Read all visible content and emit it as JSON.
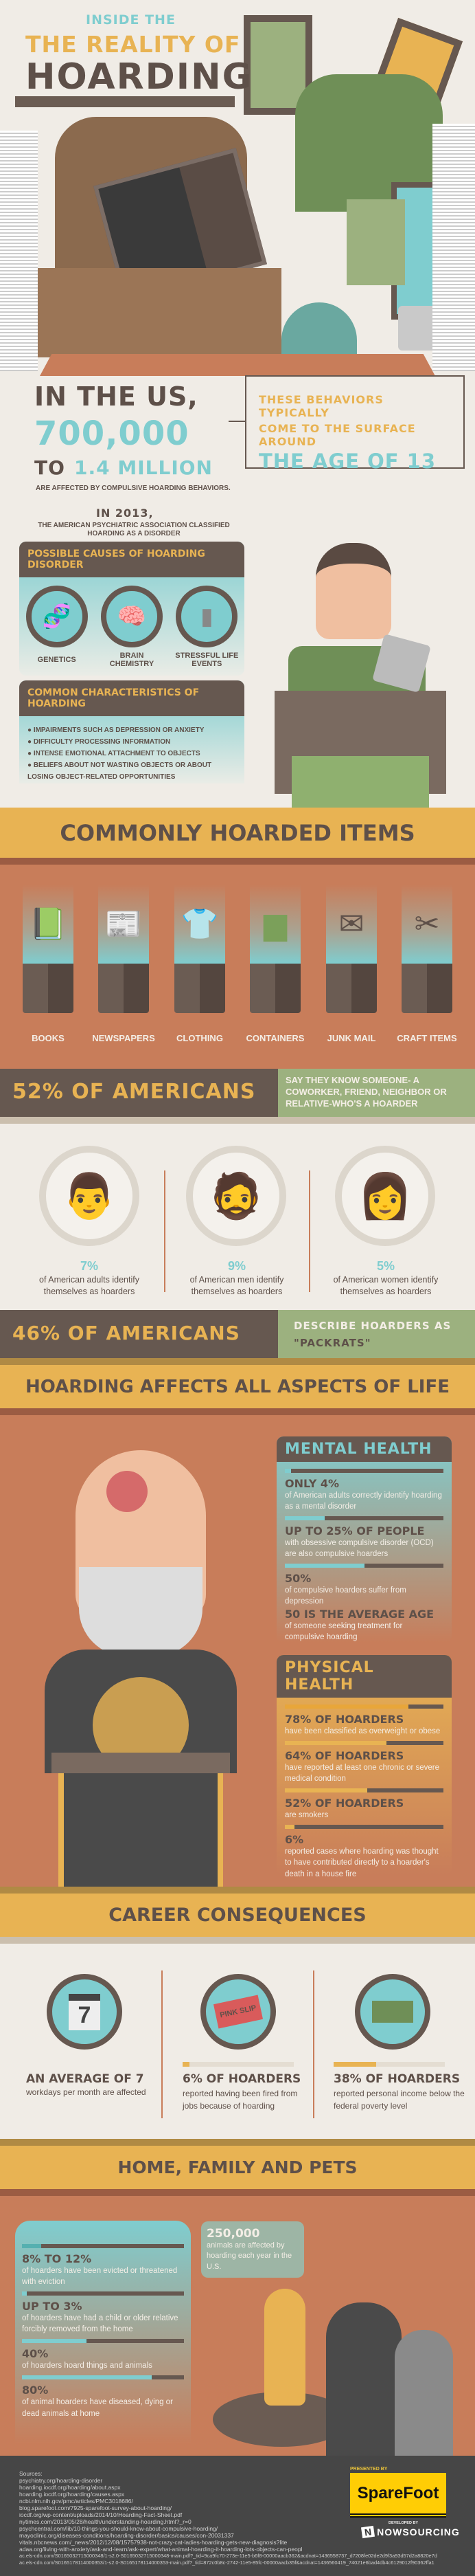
{
  "hero": {
    "kicker": "INSIDE THE",
    "title_line1": "THE REALITY OF",
    "title_line2": "HOARDING"
  },
  "intro": {
    "line1": "IN THE US,",
    "number": "700,000",
    "to": "TO",
    "range_end": "1.4 MILLION",
    "caption": "ARE AFFECTED BY COMPULSIVE HOARDING BEHAVIORS.",
    "age_box": {
      "line1": "THESE BEHAVIORS TYPICALLY",
      "line2": "COME TO THE SURFACE AROUND",
      "highlight": "THE AGE OF 13"
    },
    "year": "IN 2013,",
    "year_text": "THE AMERICAN PSYCHIATRIC ASSOCIATION CLASSIFIED HOARDING AS A DISORDER"
  },
  "causes": {
    "title": "POSSIBLE CAUSES OF HOARDING DISORDER",
    "items": [
      {
        "label": "GENETICS",
        "icon": "dna-icon"
      },
      {
        "label": "BRAIN CHEMISTRY",
        "icon": "brain-icon"
      },
      {
        "label": "STRESSFUL LIFE EVENTS",
        "icon": "tombstone-icon"
      }
    ]
  },
  "characteristics": {
    "title": "COMMON CHARACTERISTICS OF HOARDING",
    "items": [
      "IMPAIRMENTS SUCH AS DEPRESSION OR ANXIETY",
      "DIFFICULTY PROCESSING INFORMATION",
      "INTENSE EMOTIONAL ATTACHMENT TO OBJECTS",
      "BELIEFS ABOUT NOT WASTING OBJECTS OR ABOUT LOSING OBJECT-RELATED OPPORTUNITIES"
    ]
  },
  "items_section": {
    "title": "COMMONLY HOARDED ITEMS",
    "items": [
      {
        "label": "BOOKS",
        "icon": "book-icon"
      },
      {
        "label": "NEWSPAPERS",
        "icon": "newspaper-icon"
      },
      {
        "label": "CLOTHING",
        "icon": "shirt-icon"
      },
      {
        "label": "CONTAINERS",
        "icon": "container-icon"
      },
      {
        "label": "JUNK MAIL",
        "icon": "envelope-icon"
      },
      {
        "label": "CRAFT ITEMS",
        "icon": "scissors-icon"
      }
    ]
  },
  "band52": {
    "headline": "52% OF AMERICANS",
    "text": "SAY THEY KNOW SOMEONE- A COWORKER, FRIEND, NEIGHBOR OR RELATIVE-WHO'S A HOARDER"
  },
  "self_id": [
    {
      "pct": "7%",
      "value": 7,
      "text": "of American adults identify themselves as hoarders",
      "color": "#c87d5a"
    },
    {
      "pct": "9%",
      "value": 9,
      "text": "of American men identify themselves as hoarders",
      "color": "#e8b353"
    },
    {
      "pct": "5%",
      "value": 5,
      "text": "of American women identify themselves as hoarders",
      "color": "#9cb17f"
    }
  ],
  "band46": {
    "headline": "46% OF AMERICANS",
    "text1": "DESCRIBE HOARDERS AS",
    "text2": "\"PACKRATS\""
  },
  "aspects": {
    "title": "HOARDING AFFECTS ALL ASPECTS OF LIFE"
  },
  "mental": {
    "title": "MENTAL HEALTH",
    "stats": [
      {
        "big": "ONLY 4%",
        "small": "of American adults correctly identify hoarding as a mental disorder",
        "value": 4
      },
      {
        "big": "UP TO 25% OF PEOPLE",
        "small": "with obsessive compulsive disorder (OCD) are also compulsive hoarders",
        "value": 25
      },
      {
        "big": "50%",
        "small": "of compulsive hoarders suffer from depression",
        "value": 50
      },
      {
        "big": "50 IS THE AVERAGE AGE",
        "small": "of someone seeking treatment for compulsive hoarding"
      }
    ]
  },
  "physical": {
    "title": "PHYSICAL HEALTH",
    "stats": [
      {
        "big": "78% OF HOARDERS",
        "small": "have been classified as overweight or obese",
        "value": 78
      },
      {
        "big": "64% OF HOARDERS",
        "small": "have reported at least one chronic or severe medical condition",
        "value": 64
      },
      {
        "big": "52% OF HOARDERS",
        "small": "are smokers",
        "value": 52
      },
      {
        "big": "6%",
        "small": "reported cases where hoarding was thought to have contributed directly to a hoarder's death in a house fire",
        "value": 6
      }
    ]
  },
  "career": {
    "title": "CAREER CONSEQUENCES",
    "calendar_day": "7",
    "pink_slip": "PINK SLIP",
    "stats": [
      {
        "big": "AN AVERAGE OF 7",
        "small": "workdays per month are affected",
        "icon": "calendar-icon"
      },
      {
        "big": "6% OF HOARDERS",
        "small": "reported having been fired from jobs because of hoarding",
        "value": 6,
        "icon": "pink-slip-icon"
      },
      {
        "big": "38% OF HOARDERS",
        "small": "reported personal income below the federal poverty level",
        "value": 38,
        "icon": "money-icon"
      }
    ]
  },
  "home": {
    "title": "HOME, FAMILY AND PETS",
    "stats": [
      {
        "big": "8% TO 12%",
        "small": "of hoarders have been evicted or threatened with eviction",
        "value": 12
      },
      {
        "big": "UP TO 3%",
        "small": "of hoarders have had a child or older relative forcibly removed from the home",
        "value": 3
      },
      {
        "big": "40%",
        "small": "of hoarders hoard things and animals",
        "value": 40
      },
      {
        "big": "80%",
        "small": "of animal hoarders have diseased, dying or dead animals at home",
        "value": 80
      }
    ],
    "animals_big": "250,000",
    "animals_small": "animals are affected by hoarding each year in the U.S."
  },
  "footer": {
    "sources_label": "Sources:",
    "sources": [
      "psychiatry.org/hoarding-disorder",
      "hoarding.iocdf.org/hoarding/about.aspx",
      "hoarding.iocdf.org/hoarding/causes.aspx",
      "ncbi.nlm.nih.gov/pmc/articles/PMC3018686/",
      "blog.sparefoot.com/7925-sparefoot-survey-about-hoarding/",
      "iocdf.org/wp-content/uploads/2014/10/Hoarding-Fact-Sheet.pdf",
      "nytimes.com/2013/05/28/health/understanding-hoarding.html?_r=0",
      "psychcentral.com/lib/10-things-you-should-know-about-compulsive-hoarding/",
      "mayoclinic.org/diseases-conditions/hoarding-disorder/basics/causes/con-20031337",
      "vitals.nbcnews.com/_news/2012/12/08/15757938-not-crazy-cat-ladies-hoarding-gets-new-diagnosis?lite",
      "adaa.org/living-with-anxiety/ask-and-learn/ask-expert/what-animal-hoarding-it-hoarding-lots-objects-can-peopl",
      "ac.els-cdn.com/S0165032715000348/1-s2.0-S0165032715000348-main.pdf?_tid=9ca9fc70-273e-11e5-b6f8-00000aacb362&acdnat=1436558737_d7208fe02de2d9f3a93d57d2a8820e7d",
      "ac.els-cdn.com/S0165178114000353/1-s2.0-S0165178114000353-main.pdf?_tid=872c0b8c-2742-11e5-85fc-00000aacb35f&acdnat=1436560419_74021e6bad4db4c6129012f90362ffa1"
    ],
    "presented_by": "PRESENTED BY",
    "sponsor": "SpareFoot",
    "developed_by": "DEVELOPED BY",
    "developer": "NOWSOURCING"
  },
  "colors": {
    "brown": "#665850",
    "yellow": "#e8b353",
    "teal": "#7fcdcf",
    "orange": "#c87d5a",
    "green": "#9cb17f",
    "cream": "#f0ece6",
    "footer": "#464646"
  }
}
